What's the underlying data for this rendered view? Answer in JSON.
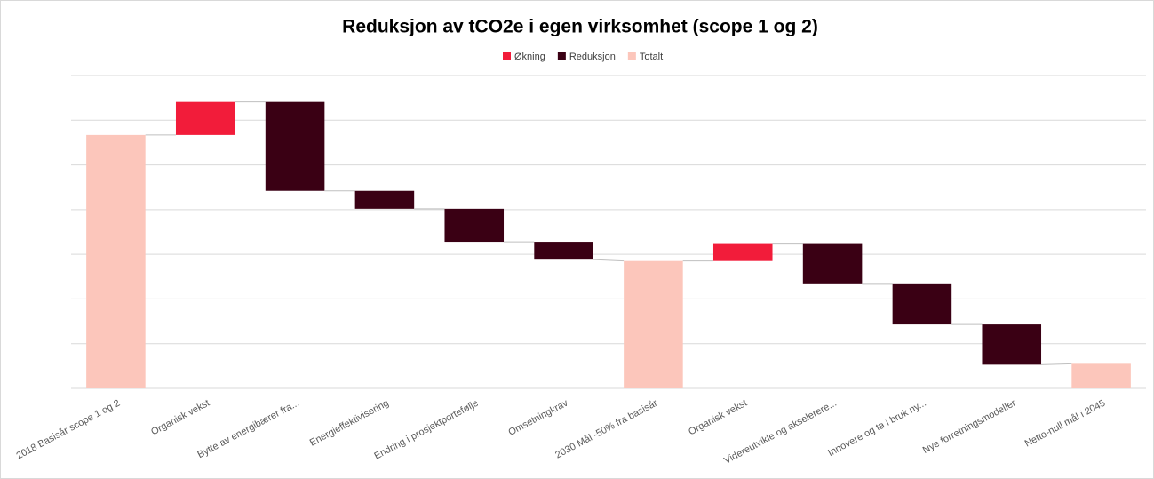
{
  "chart_data": {
    "type": "waterfall",
    "title": "Reduksjon av tCO2e i egen virksomhet (scope 1 og 2)",
    "categories": [
      "2018 Basisår scope 1 og 2",
      "Organisk vekst",
      "Bytte av energibærer fra...",
      "Energieffektivisering",
      "Endring i prosjektportefølje",
      "Omsetningkrav",
      "2030 Mål -50% fra basisår",
      "Organisk vekst",
      "Videreutvikle og akselerere...",
      "Innovere og ta i bruk ny...",
      "Nye forretningsmodeller",
      "Netto-null mål i 2045"
    ],
    "values": [
      5.67,
      0.74,
      -1.99,
      -0.4,
      -0.74,
      -0.4,
      2.85,
      0.38,
      -0.9,
      -0.9,
      -0.9,
      0.55
    ],
    "kind": [
      2,
      0,
      1,
      1,
      1,
      1,
      2,
      0,
      1,
      1,
      1,
      2
    ],
    "series": [
      {
        "name": "Økning",
        "color": "#f21c3a"
      },
      {
        "name": "Reduksjon",
        "color": "#3a0014"
      },
      {
        "name": "Totalt",
        "color": "#fcc6bb"
      }
    ],
    "ylim": [
      0,
      7
    ],
    "yticks": [
      0,
      1,
      2,
      3,
      4,
      5,
      6,
      7
    ],
    "grid": true
  }
}
